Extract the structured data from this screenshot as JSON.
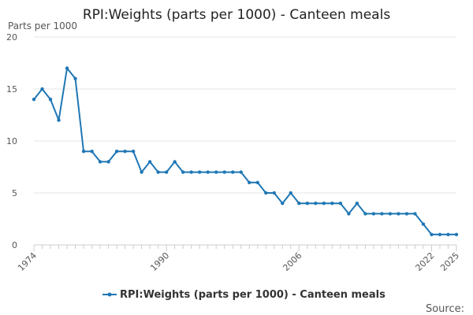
{
  "chart_data": {
    "type": "line",
    "title": "RPI:Weights (parts per 1000) - Canteen meals",
    "ylabel": "Parts per 1000",
    "xlabel": "",
    "ylim": [
      0,
      20
    ],
    "yticks": [
      0,
      5,
      10,
      15,
      20
    ],
    "xlim": [
      1974,
      2025
    ],
    "xticks": [
      1974,
      1990,
      2006,
      2022,
      2025
    ],
    "grid": true,
    "legend_position": "bottom",
    "series": [
      {
        "name": "RPI:Weights (parts per 1000) - Canteen meals",
        "color": "#1f77b4",
        "x": [
          1974,
          1975,
          1976,
          1977,
          1978,
          1979,
          1980,
          1981,
          1982,
          1983,
          1984,
          1985,
          1986,
          1987,
          1988,
          1989,
          1990,
          1991,
          1992,
          1993,
          1994,
          1995,
          1996,
          1997,
          1998,
          1999,
          2000,
          2001,
          2002,
          2003,
          2004,
          2005,
          2006,
          2007,
          2008,
          2009,
          2010,
          2011,
          2012,
          2013,
          2014,
          2015,
          2016,
          2017,
          2018,
          2019,
          2020,
          2021,
          2022,
          2023,
          2024,
          2025
        ],
        "values": [
          14,
          15,
          14,
          12,
          17,
          16,
          9,
          9,
          8,
          8,
          9,
          9,
          9,
          7,
          8,
          7,
          7,
          8,
          7,
          7,
          7,
          7,
          7,
          7,
          7,
          7,
          6,
          6,
          5,
          5,
          4,
          5,
          4,
          4,
          4,
          4,
          4,
          4,
          3,
          4,
          3,
          3,
          3,
          3,
          3,
          3,
          3,
          2,
          1,
          1,
          1,
          1
        ]
      }
    ]
  },
  "source_label": "Source:"
}
